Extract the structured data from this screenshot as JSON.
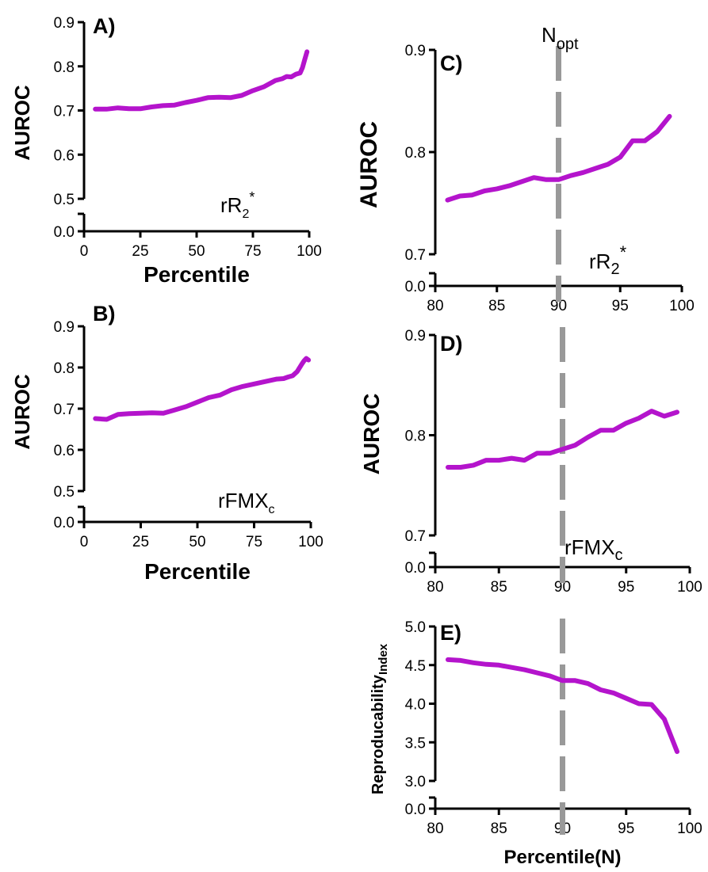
{
  "colors": {
    "series": "#b414cc",
    "reference_line": "#999999",
    "axis": "#000000"
  },
  "chart_data": [
    {
      "panel": "A",
      "panel_suffix": ")",
      "type": "line",
      "ylabel": "AUROC",
      "xlabel": "Percentile",
      "annotation": {
        "base": "rR",
        "sub": "2",
        "sup": "*"
      },
      "xlim": [
        0,
        100
      ],
      "xticks": [
        "0",
        "25",
        "50",
        "75",
        "100"
      ],
      "ylim_main": [
        0.5,
        0.9
      ],
      "yticks_main": [
        "0.5",
        "0.6",
        "0.7",
        "0.8",
        "0.9"
      ],
      "ybreak_ticks": [
        "0.0"
      ],
      "series": [
        {
          "name": "rR2*",
          "x": [
            5,
            10,
            15,
            20,
            25,
            30,
            35,
            40,
            45,
            50,
            55,
            60,
            65,
            70,
            75,
            80,
            85,
            88,
            90,
            92,
            94,
            96,
            97,
            98,
            99
          ],
          "y": [
            0.703,
            0.703,
            0.706,
            0.704,
            0.704,
            0.708,
            0.711,
            0.712,
            0.718,
            0.723,
            0.729,
            0.73,
            0.729,
            0.734,
            0.745,
            0.754,
            0.768,
            0.772,
            0.777,
            0.776,
            0.782,
            0.785,
            0.797,
            0.815,
            0.833
          ]
        }
      ]
    },
    {
      "panel": "B",
      "panel_suffix": ")",
      "type": "line",
      "ylabel": "AUROC",
      "xlabel": "Percentile",
      "annotation": {
        "base": "rFMX",
        "sub": "c",
        "sup": ""
      },
      "xlim": [
        0,
        100
      ],
      "xticks": [
        "0",
        "25",
        "50",
        "75",
        "100"
      ],
      "ylim_main": [
        0.5,
        0.9
      ],
      "yticks_main": [
        "0.5",
        "0.6",
        "0.7",
        "0.8",
        "0.9"
      ],
      "ybreak_ticks": [
        "0.0"
      ],
      "series": [
        {
          "name": "rFMXc",
          "x": [
            5,
            10,
            15,
            20,
            25,
            30,
            35,
            40,
            45,
            50,
            55,
            60,
            65,
            70,
            75,
            80,
            85,
            88,
            90,
            92,
            94,
            96,
            97,
            98,
            99
          ],
          "y": [
            0.676,
            0.674,
            0.686,
            0.688,
            0.689,
            0.69,
            0.689,
            0.697,
            0.705,
            0.716,
            0.727,
            0.733,
            0.746,
            0.754,
            0.76,
            0.766,
            0.772,
            0.773,
            0.777,
            0.78,
            0.79,
            0.808,
            0.816,
            0.822,
            0.818
          ]
        }
      ]
    },
    {
      "panel": "C",
      "panel_suffix": ")",
      "type": "line",
      "ylabel": "AUROC",
      "xlabel": "",
      "annotation": {
        "base": "rR",
        "sub": "2",
        "sup": "*"
      },
      "xlim": [
        80,
        100
      ],
      "xticks": [
        "80",
        "85",
        "90",
        "95",
        "100"
      ],
      "ylim_main": [
        0.7,
        0.9
      ],
      "yticks_main": [
        "0.7",
        "0.8",
        "0.9"
      ],
      "ybreak_ticks": [
        "0.0"
      ],
      "reference_x": 90,
      "reference_label": {
        "base": "N",
        "sub": "opt"
      },
      "series": [
        {
          "name": "rR2*",
          "x": [
            81,
            82,
            83,
            84,
            85,
            86,
            87,
            88,
            89,
            90,
            91,
            92,
            93,
            94,
            95,
            96,
            97,
            98,
            99
          ],
          "y": [
            0.753,
            0.757,
            0.758,
            0.762,
            0.764,
            0.767,
            0.771,
            0.775,
            0.773,
            0.773,
            0.777,
            0.78,
            0.784,
            0.788,
            0.795,
            0.811,
            0.811,
            0.82,
            0.835
          ]
        }
      ]
    },
    {
      "panel": "D",
      "panel_suffix": ")",
      "type": "line",
      "ylabel": "AUROC",
      "xlabel": "",
      "annotation": {
        "base": "rFMX",
        "sub": "c",
        "sup": ""
      },
      "xlim": [
        80,
        100
      ],
      "xticks": [
        "80",
        "85",
        "90",
        "95",
        "100"
      ],
      "ylim_main": [
        0.7,
        0.9
      ],
      "yticks_main": [
        "0.7",
        "0.8",
        "0.9"
      ],
      "ybreak_ticks": [
        "0.0"
      ],
      "reference_x": 90,
      "series": [
        {
          "name": "rFMXc",
          "x": [
            81,
            82,
            83,
            84,
            85,
            86,
            87,
            88,
            89,
            90,
            91,
            92,
            93,
            94,
            95,
            96,
            97,
            98,
            99
          ],
          "y": [
            0.768,
            0.768,
            0.77,
            0.775,
            0.775,
            0.777,
            0.775,
            0.782,
            0.782,
            0.786,
            0.79,
            0.798,
            0.805,
            0.805,
            0.812,
            0.817,
            0.824,
            0.819,
            0.823
          ]
        }
      ]
    },
    {
      "panel": "E",
      "panel_suffix": ")",
      "type": "line",
      "ylabel": "Reproducability",
      "ylabel_sub": "Index",
      "xlabel": "Percentile(N)",
      "annotation": null,
      "xlim": [
        80,
        100
      ],
      "xticks": [
        "80",
        "85",
        "90",
        "95",
        "100"
      ],
      "ylim_main": [
        3.0,
        5.0
      ],
      "yticks_main": [
        "3.0",
        "3.5",
        "4.0",
        "4.5",
        "5.0"
      ],
      "ybreak_ticks": [
        "0.0"
      ],
      "reference_x": 90,
      "series": [
        {
          "name": "Reproducability Index",
          "x": [
            81,
            82,
            83,
            84,
            85,
            86,
            87,
            88,
            89,
            90,
            91,
            92,
            93,
            94,
            95,
            96,
            97,
            98,
            99
          ],
          "y": [
            4.57,
            4.56,
            4.53,
            4.51,
            4.5,
            4.47,
            4.44,
            4.4,
            4.36,
            4.3,
            4.3,
            4.26,
            4.18,
            4.14,
            4.07,
            4.0,
            3.99,
            3.8,
            3.38
          ]
        }
      ]
    }
  ]
}
